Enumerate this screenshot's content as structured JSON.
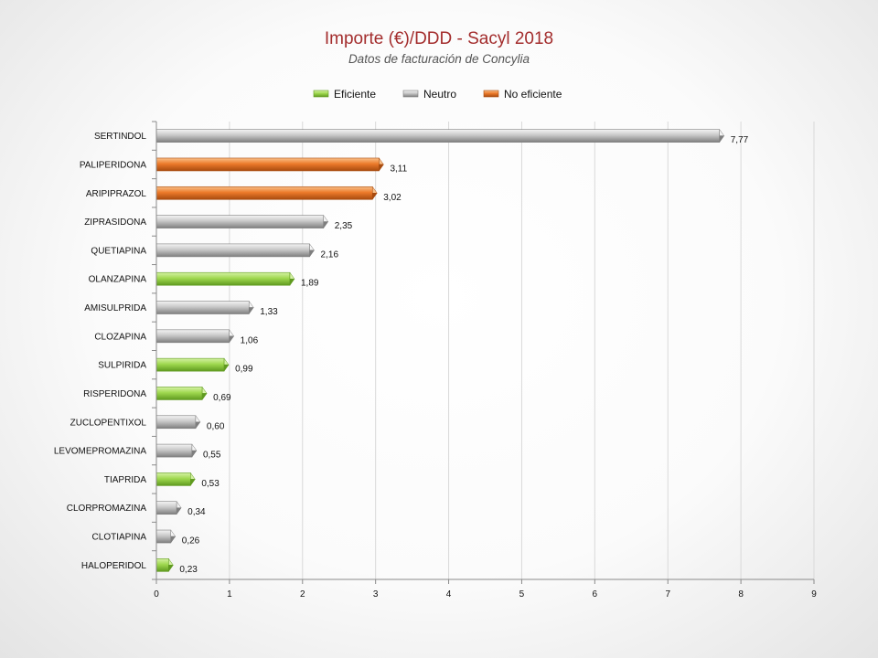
{
  "chart_data": {
    "type": "bar",
    "orientation": "horizontal",
    "title": "Importe (€)/DDD - Sacyl 2018",
    "subtitle": "Datos de facturación de Concylia",
    "xlim": [
      0,
      9
    ],
    "xticks": [
      "0",
      "1",
      "2",
      "3",
      "4",
      "5",
      "6",
      "7",
      "8",
      "9"
    ],
    "grid": true,
    "legend_position": "top-center",
    "legend": [
      {
        "key": "eficiente",
        "label": "Eficiente"
      },
      {
        "key": "neutro",
        "label": "Neutro"
      },
      {
        "key": "no_eficiente",
        "label": "No eficiente"
      }
    ],
    "categories": [
      "SERTINDOL",
      "PALIPERIDONA",
      "ARIPIPRAZOL",
      "ZIPRASIDONA",
      "QUETIAPINA",
      "OLANZAPINA",
      "AMISULPRIDA",
      "CLOZAPINA",
      "SULPIRIDA",
      "RISPERIDONA",
      "ZUCLOPENTIXOL",
      "LEVOMEPROMAZINA",
      "TIAPRIDA",
      "CLORPROMAZINA",
      "CLOTIAPINA",
      "HALOPERIDOL"
    ],
    "values": [
      7.77,
      3.11,
      3.02,
      2.35,
      2.16,
      1.89,
      1.33,
      1.06,
      0.99,
      0.69,
      0.6,
      0.55,
      0.53,
      0.34,
      0.26,
      0.23
    ],
    "value_labels": [
      "7,77",
      "3,11",
      "3,02",
      "2,35",
      "2,16",
      "1,89",
      "1,33",
      "1,06",
      "0,99",
      "0,69",
      "0,60",
      "0,55",
      "0,53",
      "0,34",
      "0,26",
      "0,23"
    ],
    "classes": [
      "neutro",
      "no_eficiente",
      "no_eficiente",
      "neutro",
      "neutro",
      "eficiente",
      "neutro",
      "neutro",
      "eficiente",
      "eficiente",
      "neutro",
      "neutro",
      "eficiente",
      "neutro",
      "neutro",
      "eficiente"
    ],
    "colors": {
      "eficiente": {
        "light": "#d6f2a6",
        "mid": "#9fd84f",
        "dark": "#5f9a1f"
      },
      "neutro": {
        "light": "#f4f4f4",
        "mid": "#c8c8c8",
        "dark": "#7e7e7e"
      },
      "no_eficiente": {
        "light": "#f9c089",
        "mid": "#ec7a2a",
        "dark": "#a84b0f"
      }
    }
  }
}
